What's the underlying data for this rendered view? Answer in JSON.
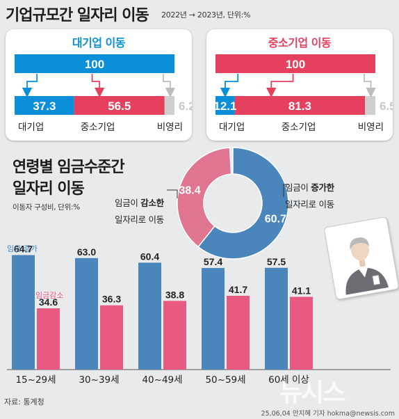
{
  "header": {
    "title": "기업규모간 일자리 이동",
    "period_note": "2022년 → 2023년, 단위:%"
  },
  "chart_data": [
    {
      "type": "bar",
      "title": "대기업 이동",
      "source": {
        "label": "",
        "value": 100
      },
      "categories": [
        "대기업",
        "중소기업",
        "비영리"
      ],
      "values": [
        37.3,
        56.5,
        6.2
      ],
      "value_labels": [
        "37.3",
        "56.5",
        "6.2"
      ],
      "source_label": "100",
      "colors": {
        "source": "#0a8fd8",
        "대기업": "#0a8fd8",
        "중소기업": "#e6405f",
        "비영리": "#cfcfcf"
      }
    },
    {
      "type": "bar",
      "title": "중소기업 이동",
      "source": {
        "label": "",
        "value": 100
      },
      "categories": [
        "대기업",
        "중소기업",
        "비영리"
      ],
      "values": [
        12.1,
        81.3,
        6.5
      ],
      "value_labels": [
        "12.1",
        "81.3",
        "6.5"
      ],
      "source_label": "100",
      "colors": {
        "source": "#e6405f",
        "대기업": "#0a8fd8",
        "중소기업": "#e6405f",
        "비영리": "#cfcfcf"
      }
    },
    {
      "type": "pie",
      "title": "연령별 임금수준간 일자리 이동",
      "subtitle": "이동자 구성비, 단위:%",
      "slices": [
        {
          "label": "임금이 증가한 일자리로 이동",
          "value": 60.7,
          "value_label": "60.7",
          "color": "#4a86bb"
        },
        {
          "label": "임금이 감소한 일자리로 이동",
          "value": 38.4,
          "value_label": "38.4",
          "color": "#e07592"
        }
      ]
    },
    {
      "type": "bar",
      "title": "",
      "categories": [
        "15~29세",
        "30~39세",
        "40~49세",
        "50~59세",
        "60세 이상"
      ],
      "series": [
        {
          "name": "임금 증가",
          "values": [
            64.7,
            63.0,
            60.4,
            57.4,
            57.5
          ],
          "value_labels": [
            "64.7",
            "63.0",
            "60.4",
            "57.4",
            "57.5"
          ],
          "color": "#4a86bb"
        },
        {
          "name": "임금감소",
          "values": [
            34.6,
            36.3,
            38.8,
            41.7,
            41.1
          ],
          "value_labels": [
            "34.6",
            "36.3",
            "38.8",
            "41.7",
            "41.1"
          ],
          "color": "#e85a82"
        }
      ],
      "ylim": [
        0,
        70
      ]
    }
  ],
  "donut_labels": {
    "decrease_pre": "임금이 ",
    "decrease_bold": "감소한",
    "decrease_line2": "일자리로 이동",
    "increase_pre": "임금이 ",
    "increase_bold": "증가한",
    "increase_line2": "일자리로 이동"
  },
  "footer": {
    "source": "자료: 통계청",
    "credit": "25,06,04 안지혜 기자 hokma@newsis.com",
    "watermark": "뉴시스"
  }
}
